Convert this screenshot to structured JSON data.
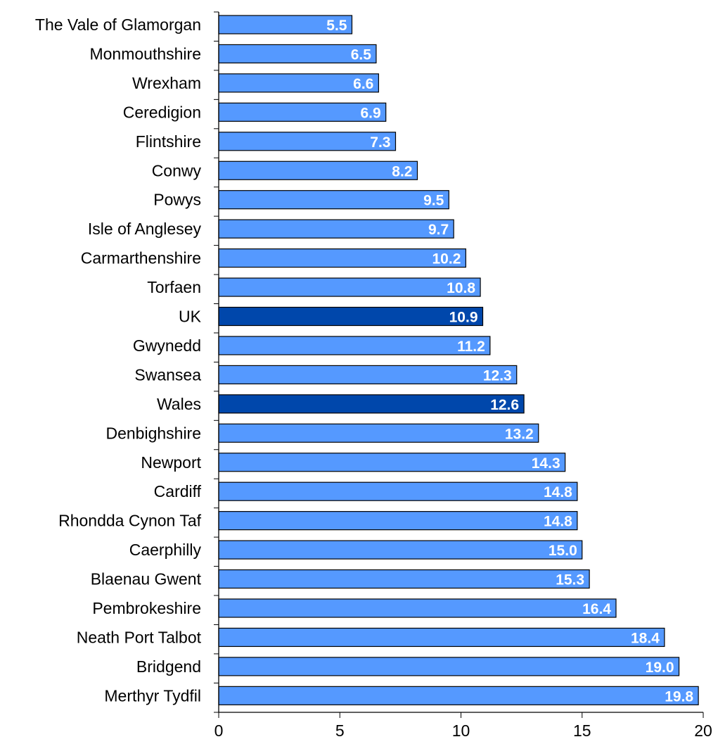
{
  "chart_data": {
    "type": "bar",
    "orientation": "horizontal",
    "categories": [
      "The Vale of Glamorgan",
      "Monmouthshire",
      "Wrexham",
      "Ceredigion",
      "Flintshire",
      "Conwy",
      "Powys",
      "Isle of Anglesey",
      "Carmarthenshire",
      "Torfaen",
      "UK",
      "Gwynedd",
      "Swansea",
      "Wales",
      "Denbighshire",
      "Newport",
      "Cardiff",
      "Rhondda Cynon Taf",
      "Caerphilly",
      "Blaenau Gwent",
      "Pembrokeshire",
      "Neath Port Talbot",
      "Bridgend",
      "Merthyr Tydfil"
    ],
    "values": [
      5.5,
      6.5,
      6.6,
      6.9,
      7.3,
      8.2,
      9.5,
      9.7,
      10.2,
      10.8,
      10.9,
      11.2,
      12.3,
      12.6,
      13.2,
      14.3,
      14.8,
      14.8,
      15.0,
      15.3,
      16.4,
      18.4,
      19.0,
      19.8
    ],
    "value_labels": [
      "5.5",
      "6.5",
      "6.6",
      "6.9",
      "7.3",
      "8.2",
      "9.5",
      "9.7",
      "10.2",
      "10.8",
      "10.9",
      "11.2",
      "12.3",
      "12.6",
      "13.2",
      "14.3",
      "14.8",
      "14.8",
      "15.0",
      "15.3",
      "16.4",
      "18.4",
      "19.0",
      "19.8"
    ],
    "highlighted": [
      "UK",
      "Wales"
    ],
    "xlim": [
      0,
      20
    ],
    "xticks": [
      "0",
      "5",
      "10",
      "15",
      "20"
    ],
    "title": "",
    "xlabel": "",
    "ylabel": "",
    "grid": false,
    "legend": "none",
    "colors": {
      "bar": "#5599FF",
      "bar_highlight": "#0047AB",
      "bar_stroke": "#000000",
      "axis": "#000000",
      "data_label": "#FFFFFF"
    }
  }
}
